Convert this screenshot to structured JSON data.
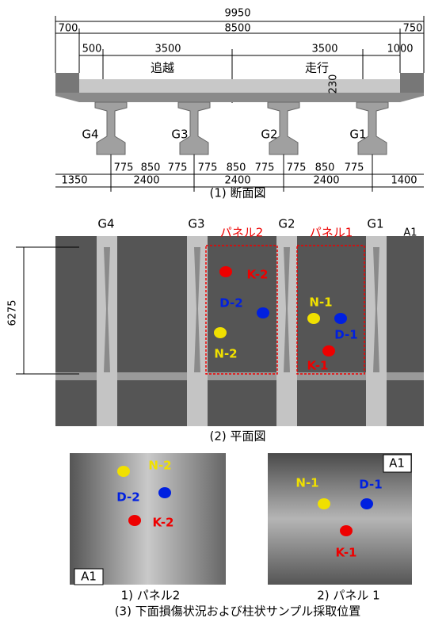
{
  "cross_section": {
    "total_width": "9950",
    "widths": [
      "700",
      "8500",
      "750"
    ],
    "lane_dims": [
      "500",
      "3500",
      "3500",
      "1000"
    ],
    "lanes": [
      "追越",
      "走行"
    ],
    "slab_thickness": "230",
    "girders": [
      "G4",
      "G3",
      "G2",
      "G1"
    ],
    "bottom_dims": [
      "775",
      "850",
      "775",
      "775",
      "850",
      "775",
      "775",
      "850",
      "775"
    ],
    "edge_dims": [
      "1350",
      "1400"
    ],
    "spacings": [
      "2400",
      "2400",
      "2400"
    ],
    "caption": "(1) 断面図"
  },
  "plan": {
    "girders": [
      "G4",
      "G3",
      "G2",
      "G1"
    ],
    "panels": [
      "パネル2",
      "パネル1"
    ],
    "abutment": "A1",
    "length": "6275",
    "samples": [
      "K-2",
      "D-2",
      "N-2",
      "N-1",
      "D-1",
      "K-1"
    ],
    "caption": "(2) 平面図"
  },
  "photos": [
    {
      "samples": [
        "N-2",
        "D-2",
        "K-2"
      ],
      "abutment": "A1",
      "caption": "1) パネル2"
    },
    {
      "samples": [
        "N-1",
        "D-1",
        "K-1"
      ],
      "abutment": "A1",
      "caption": "2) パネル 1"
    }
  ],
  "caption": "(3) 下面損傷状況および柱状サンプル採取位置"
}
